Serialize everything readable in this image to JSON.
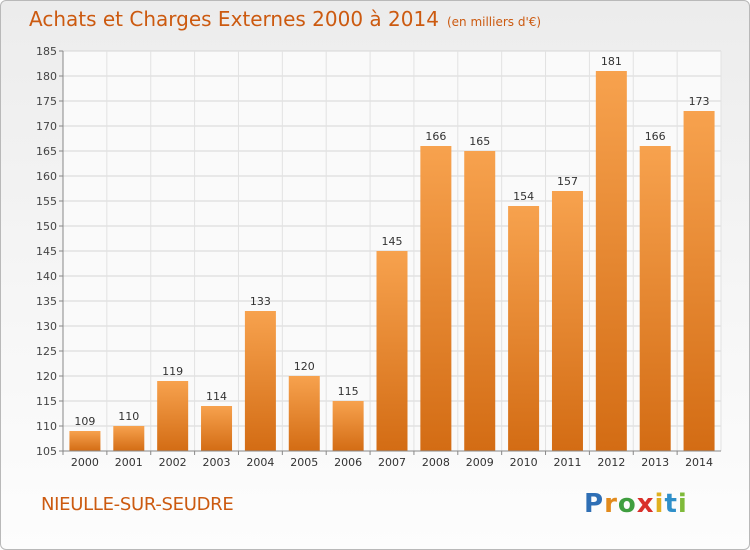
{
  "header": {
    "title": "Achats et Charges Externes 2000 à 2014",
    "subtitle": "(en milliers d'€)"
  },
  "place_name": "NIEULLE-SUR-SEUDRE",
  "logo": {
    "text": "Proxiti",
    "letter_colors": [
      "#2f6fb5",
      "#e28a1c",
      "#3f9e3f",
      "#d9302a",
      "#e0b020",
      "#2f8fc9",
      "#7fba3a"
    ]
  },
  "colors": {
    "bar_light": "#f7a24e",
    "bar_dark": "#d36c14",
    "title": "#cc5a10"
  },
  "chart_data": {
    "type": "bar",
    "title": "Achats et Charges Externes 2000 à 2014",
    "subtitle": "(en milliers d'€)",
    "categories": [
      "2000",
      "2001",
      "2002",
      "2003",
      "2004",
      "2005",
      "2006",
      "2007",
      "2008",
      "2009",
      "2010",
      "2011",
      "2012",
      "2013",
      "2014"
    ],
    "values": [
      109,
      110,
      119,
      114,
      133,
      120,
      115,
      145,
      166,
      165,
      154,
      157,
      181,
      166,
      173
    ],
    "data_labels": [
      "109",
      "110",
      "119",
      "114",
      "133",
      "120",
      "115",
      "145",
      "166",
      "165",
      "154",
      "157",
      "181",
      "166",
      "173"
    ],
    "ylim": [
      105,
      185
    ],
    "yticks": [
      "105",
      "110",
      "115",
      "120",
      "125",
      "130",
      "135",
      "140",
      "145",
      "150",
      "155",
      "160",
      "165",
      "170",
      "175",
      "180",
      "185"
    ],
    "grid": true,
    "xlabel": "",
    "ylabel": ""
  }
}
